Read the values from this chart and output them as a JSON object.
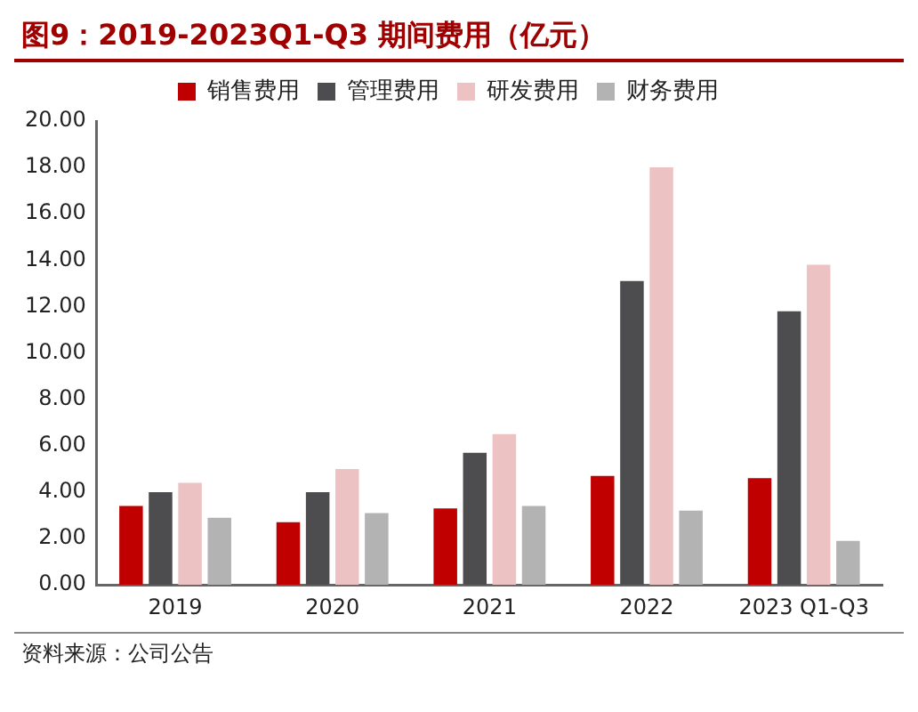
{
  "chart_data": {
    "type": "bar",
    "title": "图9：2019-2023Q1-Q3 期间费用（亿元）",
    "categories": [
      "2019",
      "2020",
      "2021",
      "2022",
      "2023 Q1-Q3"
    ],
    "series": [
      {
        "name": "销售费用",
        "color": "#c00000",
        "values": [
          3.4,
          2.7,
          3.3,
          4.7,
          4.6
        ]
      },
      {
        "name": "管理费用",
        "color": "#4d4d4f",
        "values": [
          4.0,
          4.0,
          5.7,
          13.1,
          11.8
        ]
      },
      {
        "name": "研发费用",
        "color": "#ecc2c2",
        "values": [
          4.4,
          5.0,
          6.5,
          18.0,
          13.8
        ]
      },
      {
        "name": "财务费用",
        "color": "#b3b3b3",
        "values": [
          2.9,
          3.1,
          3.4,
          3.2,
          1.9
        ]
      }
    ],
    "ylim": [
      0,
      20
    ],
    "yticks": [
      {
        "value": 0,
        "label": "0.00"
      },
      {
        "value": 2,
        "label": "2.00"
      },
      {
        "value": 4,
        "label": "4.00"
      },
      {
        "value": 6,
        "label": "6.00"
      },
      {
        "value": 8,
        "label": "8.00"
      },
      {
        "value": 10,
        "label": "10.00"
      },
      {
        "value": 12,
        "label": "12.00"
      },
      {
        "value": 14,
        "label": "14.00"
      },
      {
        "value": 16,
        "label": "16.00"
      },
      {
        "value": 18,
        "label": "18.00"
      },
      {
        "value": 20,
        "label": "20.00"
      }
    ],
    "grid": false,
    "legend": "top",
    "annotations": [
      "资料来源：公司公告"
    ]
  }
}
